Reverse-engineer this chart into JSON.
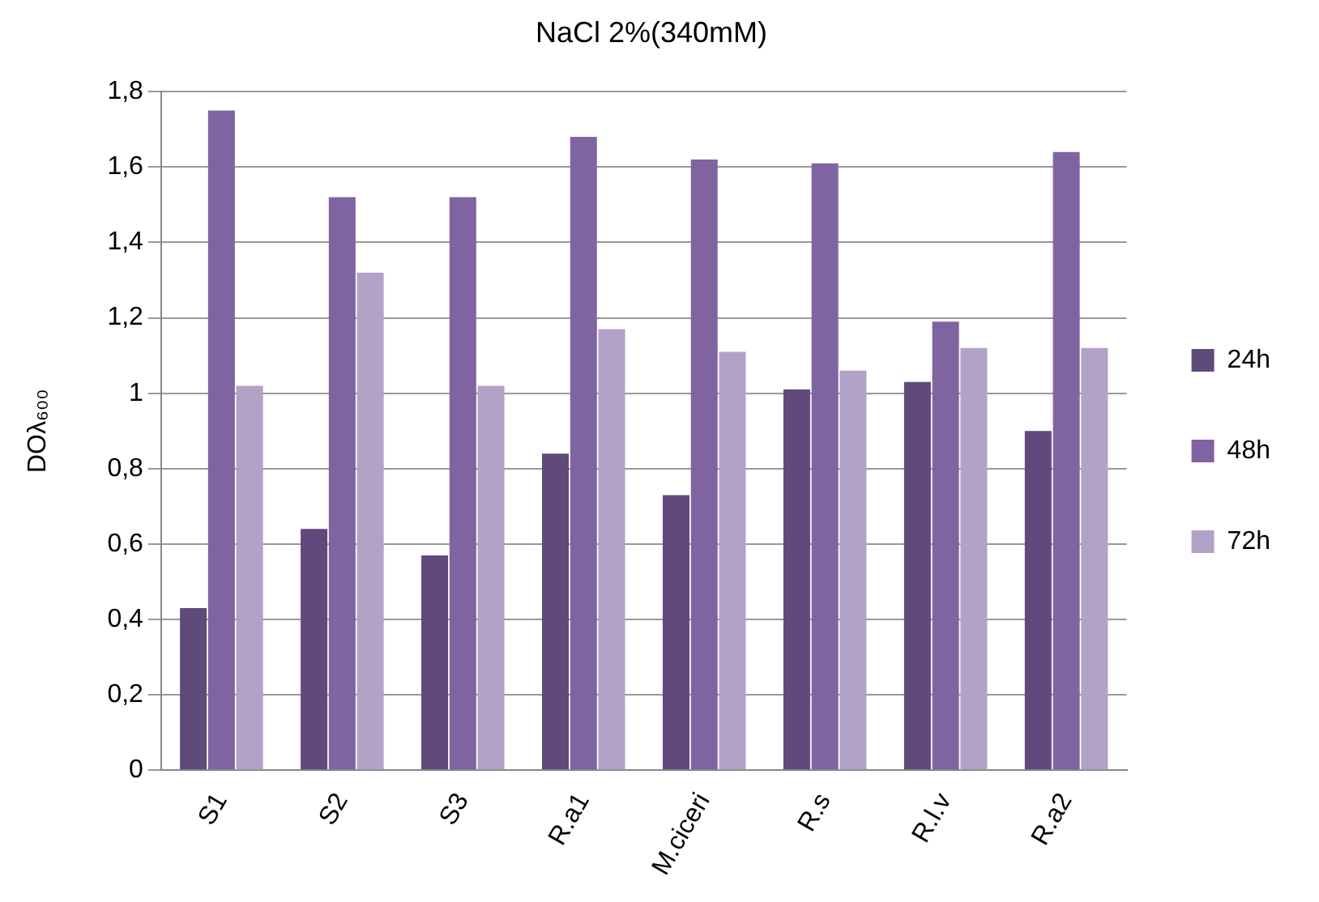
{
  "chart_data": {
    "type": "bar",
    "title": "NaCl 2%(340mM)",
    "ylabel": "DOλ₆₀₀",
    "categories": [
      "S1",
      "S2",
      "S3",
      "R.a1",
      "M.ciceri",
      "R.s",
      "R.l.v",
      "R.a2"
    ],
    "series": [
      {
        "name": "24h",
        "color": "#604a7b",
        "values": [
          0.43,
          0.64,
          0.57,
          0.84,
          0.73,
          1.01,
          1.03,
          0.9
        ]
      },
      {
        "name": "48h",
        "color": "#8064a2",
        "values": [
          1.75,
          1.52,
          1.52,
          1.68,
          1.62,
          1.61,
          1.19,
          1.64
        ]
      },
      {
        "name": "72h",
        "color": "#b3a2c7",
        "values": [
          1.02,
          1.32,
          1.02,
          1.17,
          1.11,
          1.06,
          1.12,
          1.12
        ]
      }
    ],
    "ylim": [
      0,
      1.8
    ],
    "yticks": [
      0,
      {
        "value": 0.2,
        "label": "0,2"
      },
      {
        "value": 0.4,
        "label": "0,4"
      },
      {
        "value": 0.6,
        "label": "0,6"
      },
      {
        "value": 0.8,
        "label": "0,8"
      },
      1,
      {
        "value": 1.2,
        "label": "1,2"
      },
      {
        "value": 1.4,
        "label": "1,4"
      },
      {
        "value": 1.6,
        "label": "1,6"
      },
      {
        "value": 1.8,
        "label": "1,8"
      }
    ],
    "grid": "y",
    "legend": "right"
  }
}
